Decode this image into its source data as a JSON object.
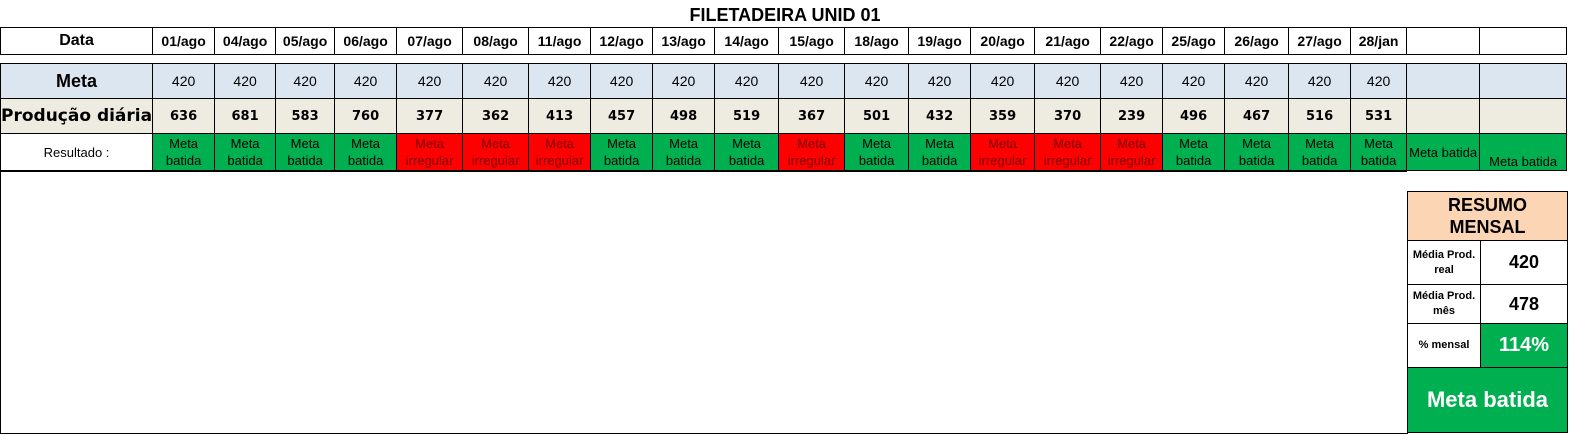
{
  "title": "FILETADEIRA UNID 01",
  "labels": {
    "date": "Data",
    "meta": "Meta",
    "production": "Produção diária",
    "result": "Resultado :"
  },
  "dates": [
    "01/ago",
    "04/ago",
    "05/ago",
    "06/ago",
    "07/ago",
    "08/ago",
    "11/ago",
    "12/ago",
    "13/ago",
    "14/ago",
    "15/ago",
    "18/ago",
    "19/ago",
    "20/ago",
    "21/ago",
    "22/ago",
    "25/ago",
    "26/ago",
    "27/ago",
    "28/jan",
    "",
    ""
  ],
  "meta": [
    "420",
    "420",
    "420",
    "420",
    "420",
    "420",
    "420",
    "420",
    "420",
    "420",
    "420",
    "420",
    "420",
    "420",
    "420",
    "420",
    "420",
    "420",
    "420",
    "420",
    "",
    ""
  ],
  "production": [
    "636",
    "681",
    "583",
    "760",
    "377",
    "362",
    "413",
    "457",
    "498",
    "519",
    "367",
    "501",
    "432",
    "359",
    "370",
    "239",
    "496",
    "467",
    "516",
    "531",
    "",
    ""
  ],
  "results": [
    {
      "text": "Meta batida",
      "status": "ok"
    },
    {
      "text": "Meta batida",
      "status": "ok"
    },
    {
      "text": "Meta batida",
      "status": "ok"
    },
    {
      "text": "Meta batida",
      "status": "ok"
    },
    {
      "text": "Meta irregular",
      "status": "bad"
    },
    {
      "text": "Meta irregular",
      "status": "bad"
    },
    {
      "text": "Meta irregular",
      "status": "bad"
    },
    {
      "text": "Meta batida",
      "status": "ok"
    },
    {
      "text": "Meta batida",
      "status": "ok"
    },
    {
      "text": "Meta batida",
      "status": "ok"
    },
    {
      "text": "Meta irregular",
      "status": "bad"
    },
    {
      "text": "Meta batida",
      "status": "ok"
    },
    {
      "text": "Meta batida",
      "status": "ok"
    },
    {
      "text": "Meta irregular",
      "status": "bad"
    },
    {
      "text": "Meta irregular",
      "status": "bad"
    },
    {
      "text": "Meta irregular",
      "status": "bad"
    },
    {
      "text": "Meta batida",
      "status": "ok"
    },
    {
      "text": "Meta batida",
      "status": "ok"
    },
    {
      "text": "Meta batida",
      "status": "ok"
    },
    {
      "text": "Meta batida",
      "status": "ok"
    },
    {
      "text": "Meta batida",
      "status": "ok"
    },
    {
      "text": "Meta batida",
      "status": "ok-single"
    }
  ],
  "summary": {
    "title": "RESUMO MENSAL",
    "avg_real_label": "Média Prod. real",
    "avg_real_value": "420",
    "avg_month_label": "Média Prod. mês",
    "avg_month_value": "478",
    "pct_label": "% mensal",
    "pct_value": "114%",
    "result": "Meta batida"
  },
  "colors": {
    "ok": "#00b050",
    "bad": "#ff0000",
    "meta_row": "#dce6f1",
    "production_row": "#eeece1",
    "summary_header": "#fcd5b4"
  }
}
